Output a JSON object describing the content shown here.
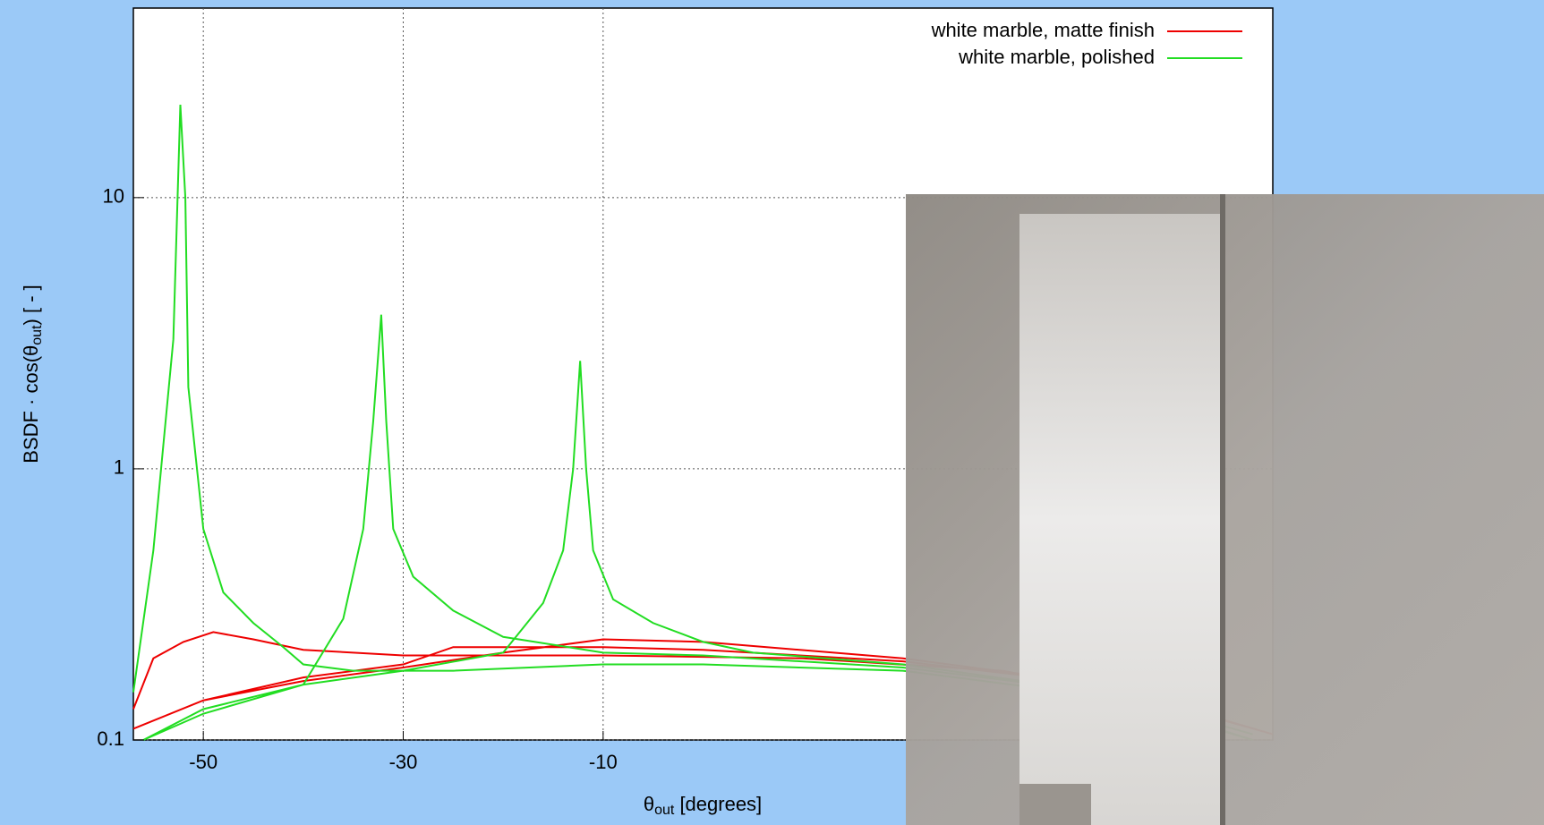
{
  "chart_data": {
    "type": "line",
    "x_label": {
      "symbol": "θ",
      "sub": "out",
      "rest": " [degrees]"
    },
    "y_label": {
      "before": "BSDF · cos(θ",
      "sub": "out",
      "after": ") [ - ]"
    },
    "xlim": [
      -57,
      57
    ],
    "xticks": [
      -50,
      -30,
      -10
    ],
    "ylim": [
      0.1,
      50
    ],
    "yticks": [
      0.1,
      1,
      10
    ],
    "log_y": true,
    "grid": true,
    "legend": "top-right",
    "series": [
      {
        "name": "white marble, matte finish",
        "color": "#ee0000",
        "x": [
          -57,
          -55,
          -52,
          -49,
          -45,
          -40,
          -30,
          -10,
          10,
          30,
          45,
          57,
          null,
          -57,
          -50,
          -40,
          -30,
          -25,
          -20,
          -10,
          0,
          20,
          40,
          57,
          null,
          -57,
          -50,
          -40,
          -30,
          -20,
          -10,
          0,
          20,
          40,
          57
        ],
        "values": [
          0.13,
          0.2,
          0.23,
          0.25,
          0.235,
          0.215,
          0.205,
          0.205,
          0.2,
          0.18,
          0.14,
          0.105,
          null,
          0.11,
          0.14,
          0.17,
          0.19,
          0.22,
          0.22,
          0.22,
          0.215,
          0.195,
          0.16,
          0.105,
          null,
          0.11,
          0.14,
          0.165,
          0.185,
          0.21,
          0.235,
          0.23,
          0.2,
          0.16,
          0.105
        ]
      },
      {
        "name": "white marble, polished",
        "color": "#22dd22",
        "x": [
          -57,
          -55,
          -53,
          -52.3,
          -51.8,
          -51.5,
          -50,
          -48,
          -45,
          -42,
          -40,
          -35,
          -25,
          -10,
          0,
          20,
          40,
          55,
          null,
          -56,
          -50,
          -40,
          -36,
          -34,
          -33,
          -32.2,
          -31.7,
          -31,
          -29,
          -25,
          -20,
          -10,
          0,
          20,
          40,
          55,
          null,
          -56,
          -50,
          -40,
          -30,
          -20,
          -16,
          -14,
          -13,
          -12.3,
          -11.7,
          -11,
          -9,
          -5,
          0,
          5,
          20,
          40,
          55
        ],
        "values": [
          0.15,
          0.5,
          3,
          22,
          10,
          2,
          0.6,
          0.35,
          0.27,
          0.22,
          0.19,
          0.18,
          0.18,
          0.19,
          0.19,
          0.18,
          0.145,
          0.1,
          null,
          0.1,
          0.125,
          0.16,
          0.28,
          0.6,
          1.5,
          3.7,
          1.5,
          0.6,
          0.4,
          0.3,
          0.24,
          0.21,
          0.205,
          0.185,
          0.15,
          0.105,
          null,
          0.1,
          0.13,
          0.16,
          0.18,
          0.21,
          0.32,
          0.5,
          1,
          2.5,
          1,
          0.5,
          0.33,
          0.27,
          0.23,
          0.21,
          0.19,
          0.15,
          0.1
        ]
      }
    ]
  }
}
